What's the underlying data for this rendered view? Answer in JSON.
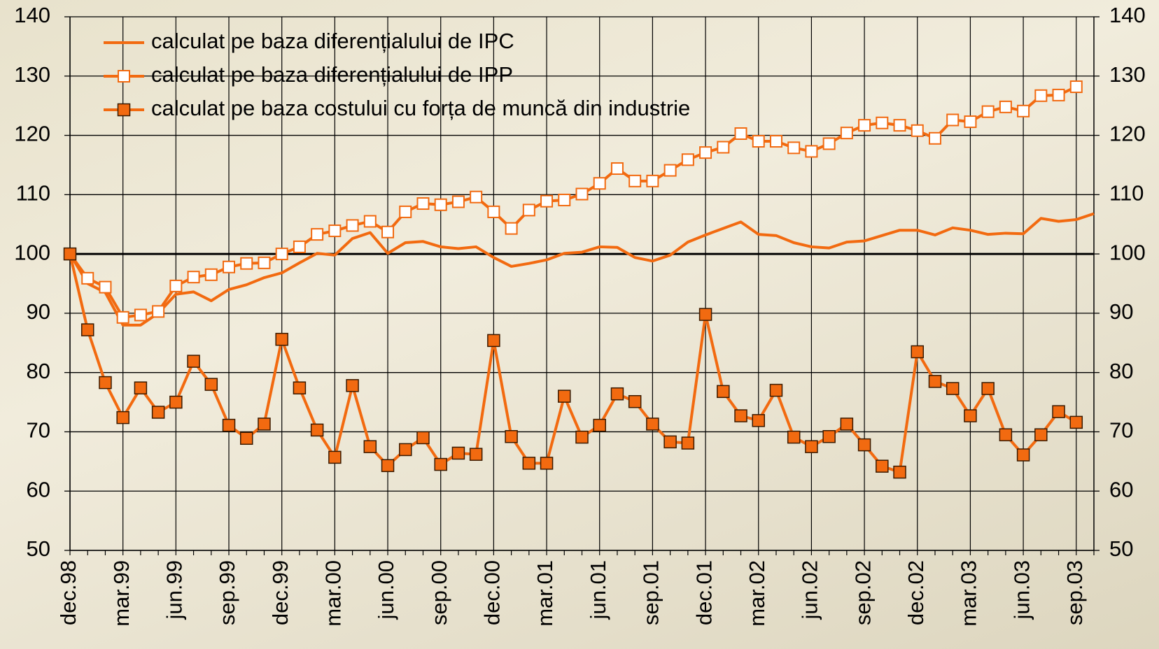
{
  "chart_data": {
    "type": "line",
    "categories": [
      "dec.98",
      null,
      null,
      "mar.99",
      null,
      null,
      "jun.99",
      null,
      null,
      "sep.99",
      null,
      null,
      "dec.99",
      null,
      null,
      "mar.00",
      null,
      null,
      "jun.00",
      null,
      null,
      "sep.00",
      null,
      null,
      "dec.00",
      null,
      null,
      "mar.01",
      null,
      null,
      "jun.01",
      null,
      null,
      "sep.01",
      null,
      null,
      "dec.01",
      null,
      null,
      "mar.02",
      null,
      null,
      "jun.02",
      null,
      null,
      "sep.02",
      null,
      null,
      "dec.02",
      null,
      null,
      "mar.03",
      null,
      null,
      "jun.03",
      null,
      null,
      "sep.03",
      null
    ],
    "series": [
      {
        "name": "calculat pe baza diferențialului de IPC",
        "color": "#f26a10",
        "marker": "none",
        "values": [
          100,
          95,
          93.5,
          88,
          88,
          90,
          93.2,
          93.6,
          92.1,
          94,
          94.8,
          96,
          96.8,
          98.5,
          100.1,
          99.8,
          102.6,
          103.6,
          100.1,
          101.9,
          102.1,
          101.2,
          100.9,
          101.2,
          99.4,
          97.9,
          98.4,
          99,
          100.1,
          100.3,
          101.2,
          101.1,
          99.4,
          98.8,
          99.8,
          102,
          103.2,
          104.3,
          105.4,
          103.3,
          103.1,
          101.9,
          101.2,
          101,
          102,
          102.2,
          103.1,
          104,
          104,
          103.2,
          104.4,
          104,
          103.3,
          103.5,
          103.4,
          106,
          105.5,
          105.8,
          106.8
        ]
      },
      {
        "name": "calculat pe baza diferențialului de IPP",
        "color": "#f26a10",
        "marker": "square-open",
        "values": [
          100,
          95.9,
          94.4,
          89.3,
          89.7,
          90.3,
          94.6,
          96.1,
          96.5,
          97.8,
          98.4,
          98.5,
          100,
          101.2,
          103.3,
          103.9,
          104.8,
          105.5,
          103.7,
          107.1,
          108.5,
          108.3,
          108.8,
          109.6,
          107.1,
          104.3,
          107.4,
          108.9,
          109.1,
          110.1,
          111.9,
          114.4,
          112.3,
          112.3,
          114.1,
          115.9,
          117.1,
          118,
          120.3,
          119,
          119,
          117.9,
          117.3,
          118.6,
          120.4,
          121.7,
          122.1,
          121.7,
          120.8,
          119.5,
          122.6,
          122.3,
          124,
          124.8,
          124.1,
          126.7,
          126.8,
          128.2,
          null
        ]
      },
      {
        "name": "calculat pe baza costului cu forța de muncă din industrie",
        "color": "#f26a10",
        "marker": "square",
        "values": [
          100,
          87.2,
          78.3,
          72.4,
          77.4,
          73.3,
          75,
          81.9,
          78,
          71.1,
          68.9,
          71.3,
          85.6,
          77.4,
          70.3,
          65.7,
          77.8,
          67.5,
          64.3,
          67,
          69,
          64.5,
          66.4,
          66.2,
          85.4,
          69.2,
          64.7,
          64.7,
          76,
          69.1,
          71.1,
          76.4,
          75.1,
          71.3,
          68.3,
          68.1,
          89.8,
          76.8,
          72.7,
          71.9,
          77,
          69.1,
          67.5,
          69.2,
          71.3,
          67.8,
          64.2,
          63.2,
          83.5,
          78.5,
          77.3,
          72.7,
          77.3,
          69.5,
          66.1,
          69.5,
          73.4,
          71.6,
          null
        ]
      }
    ],
    "ylim": [
      50,
      140
    ],
    "yticks": [
      50,
      60,
      70,
      80,
      90,
      100,
      110,
      120,
      130,
      140
    ],
    "y2lim": [
      50,
      140
    ],
    "y2ticks": [
      50,
      60,
      70,
      80,
      90,
      100,
      110,
      120,
      130,
      140
    ],
    "reference_line": 100,
    "grid": true,
    "legend": "upper left"
  }
}
